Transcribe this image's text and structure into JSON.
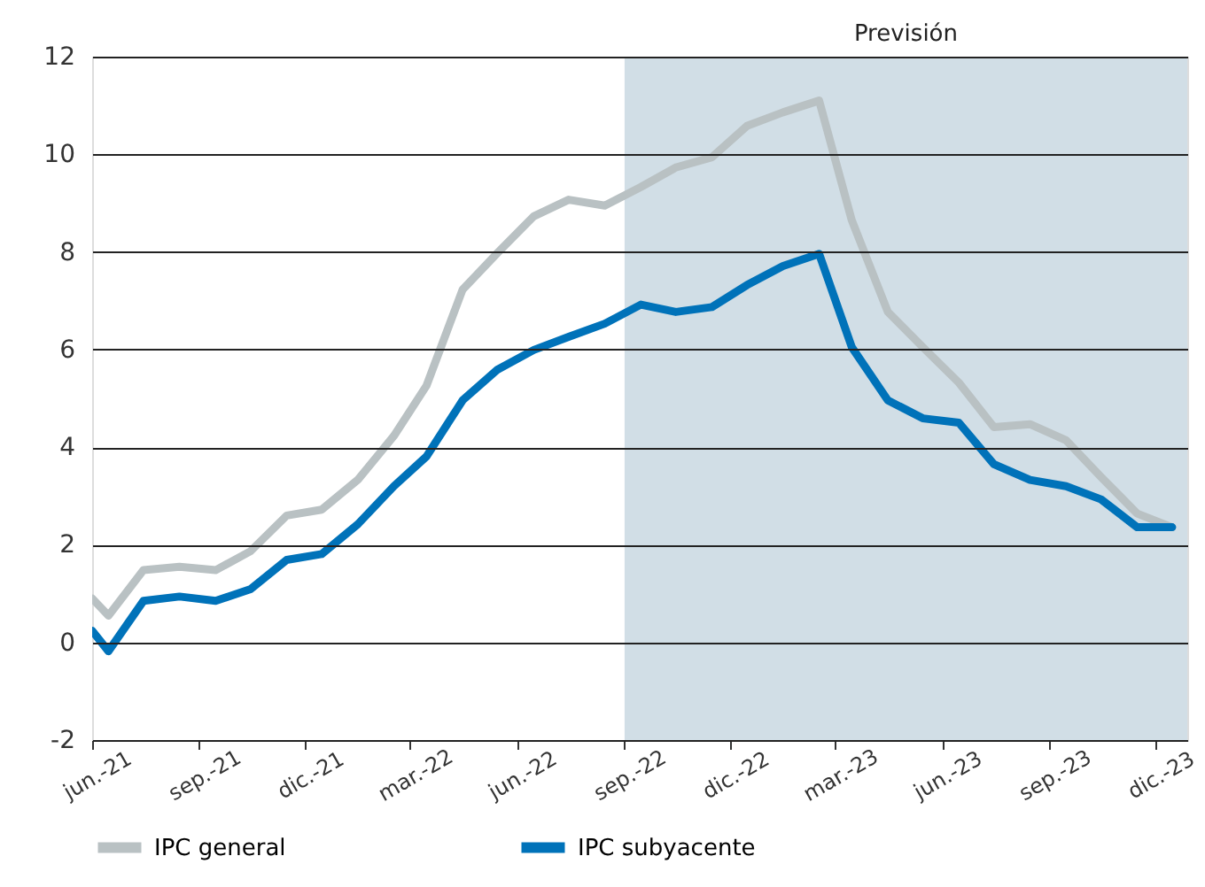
{
  "chart_data": {
    "type": "line",
    "x": [
      "2021-06-01",
      "2021-06-15",
      "2021-07-15",
      "2021-08-15",
      "2021-09-15",
      "2021-10-15",
      "2021-11-15",
      "2021-12-15",
      "2022-01-15",
      "2022-02-15",
      "2022-03-15",
      "2022-04-15",
      "2022-05-15",
      "2022-06-15",
      "2022-07-15",
      "2022-08-15",
      "2022-09-15",
      "2022-10-15",
      "2022-11-15",
      "2022-12-15",
      "2023-01-15",
      "2023-02-15",
      "2023-03-15",
      "2023-04-15",
      "2023-05-15",
      "2023-06-15",
      "2023-07-15",
      "2023-08-15",
      "2023-09-15",
      "2023-10-15",
      "2023-11-15",
      "2023-12-15"
    ],
    "series": [
      {
        "name": "IPC general",
        "color": "#b9c1c3",
        "values": [
          0.9,
          0.55,
          1.48,
          1.55,
          1.48,
          1.87,
          2.6,
          2.72,
          3.33,
          4.23,
          5.26,
          7.23,
          7.98,
          8.73,
          9.07,
          8.95,
          9.33,
          9.73,
          9.94,
          10.58,
          10.86,
          11.1,
          8.65,
          6.77,
          6.05,
          5.32,
          4.41,
          4.47,
          4.14,
          3.39,
          2.64,
          2.36
        ]
      },
      {
        "name": "IPC subyacente",
        "color": "#0072b9",
        "values": [
          0.24,
          -0.18,
          0.85,
          0.94,
          0.85,
          1.09,
          1.69,
          1.81,
          2.42,
          3.2,
          3.81,
          4.96,
          5.59,
          5.99,
          6.26,
          6.53,
          6.92,
          6.77,
          6.87,
          7.32,
          7.71,
          7.96,
          6.05,
          4.96,
          4.59,
          4.5,
          3.65,
          3.33,
          3.2,
          2.93,
          2.36,
          2.36
        ]
      }
    ],
    "xlim": [
      "2021-06-01",
      "2023-12-28"
    ],
    "xticks": [
      {
        "value": "2021-06-01",
        "label": "jun.-21"
      },
      {
        "value": "2021-09-01",
        "label": "sep.-21"
      },
      {
        "value": "2021-12-01",
        "label": "dic.-21"
      },
      {
        "value": "2022-03-01",
        "label": "mar.-22"
      },
      {
        "value": "2022-06-01",
        "label": "jun.-22"
      },
      {
        "value": "2022-09-01",
        "label": "sep.-22"
      },
      {
        "value": "2022-12-01",
        "label": "dic.-22"
      },
      {
        "value": "2023-03-01",
        "label": "mar.-23"
      },
      {
        "value": "2023-06-01",
        "label": "jun.-23"
      },
      {
        "value": "2023-09-01",
        "label": "sep.-23"
      },
      {
        "value": "2023-12-01",
        "label": "dic.-23"
      }
    ],
    "ylim": [
      -2,
      12
    ],
    "yticks": [
      -2,
      0,
      2,
      4,
      6,
      8,
      10,
      12
    ],
    "bands": [
      {
        "axis": "x",
        "from": "2022-09-01",
        "to": "2023-12-28",
        "label": "Previsión",
        "color": "#d1dee6"
      }
    ],
    "grid": "y",
    "legend": "bottom",
    "marker": "none",
    "line_style": "solid"
  }
}
